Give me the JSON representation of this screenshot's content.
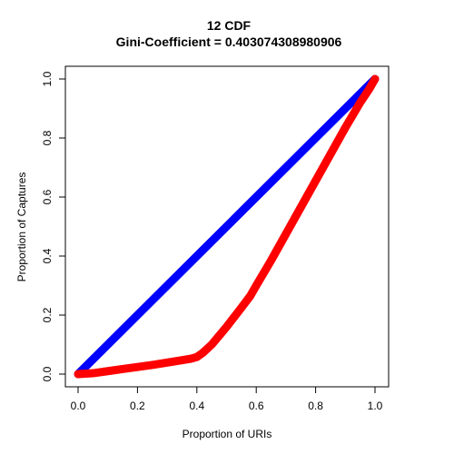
{
  "chart_data": {
    "type": "line",
    "title": "12 CDF",
    "subtitle": "Gini-Coefficient =  0.403074308980906",
    "xlabel": "Proportion of URIs",
    "ylabel": "Proportion of Captures",
    "xlim": [
      0,
      1
    ],
    "ylim": [
      0,
      1
    ],
    "x_ticks": [
      "0.0",
      "0.2",
      "0.4",
      "0.6",
      "0.8",
      "1.0"
    ],
    "y_ticks": [
      "0.0",
      "0.2",
      "0.4",
      "0.6",
      "0.8",
      "1.0"
    ],
    "grid": false,
    "series": [
      {
        "color": "#0000ff",
        "x": [
          0,
          1
        ],
        "y": [
          0,
          1
        ]
      },
      {
        "color": "#ff0000",
        "x": [
          0,
          0.05,
          0.1,
          0.15,
          0.2,
          0.25,
          0.3,
          0.35,
          0.38,
          0.4,
          0.42,
          0.45,
          0.5,
          0.55,
          0.58,
          0.6,
          0.65,
          0.7,
          0.75,
          0.8,
          0.85,
          0.9,
          0.95,
          0.98,
          1.0
        ],
        "y": [
          0,
          0.003,
          0.01,
          0.017,
          0.024,
          0.031,
          0.039,
          0.047,
          0.052,
          0.058,
          0.072,
          0.1,
          0.16,
          0.225,
          0.265,
          0.3,
          0.385,
          0.475,
          0.565,
          0.655,
          0.745,
          0.835,
          0.92,
          0.965,
          1.0
        ]
      }
    ]
  }
}
